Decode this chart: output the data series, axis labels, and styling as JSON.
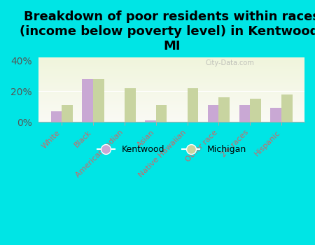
{
  "title": "Breakdown of poor residents within races\n(income below poverty level) in Kentwood,\nMI",
  "categories": [
    "White",
    "Black",
    "American Indian",
    "Asian",
    "Native Hawaiian",
    "Other race",
    "2+ races",
    "Hispanic"
  ],
  "kentwood_values": [
    7,
    28,
    0,
    1,
    0,
    11,
    11,
    9
  ],
  "michigan_values": [
    11,
    28,
    22,
    11,
    22,
    16,
    15,
    18
  ],
  "kentwood_color": "#c9a8d4",
  "michigan_color": "#c8d4a0",
  "bg_outer": "#00e5e5",
  "ylim": [
    0,
    42
  ],
  "yticks": [
    0,
    20,
    40
  ],
  "ytick_labels": [
    "0%",
    "20%",
    "40%"
  ],
  "title_fontsize": 13,
  "legend_labels": [
    "Kentwood",
    "Michigan"
  ],
  "watermark": "City-Data.com"
}
